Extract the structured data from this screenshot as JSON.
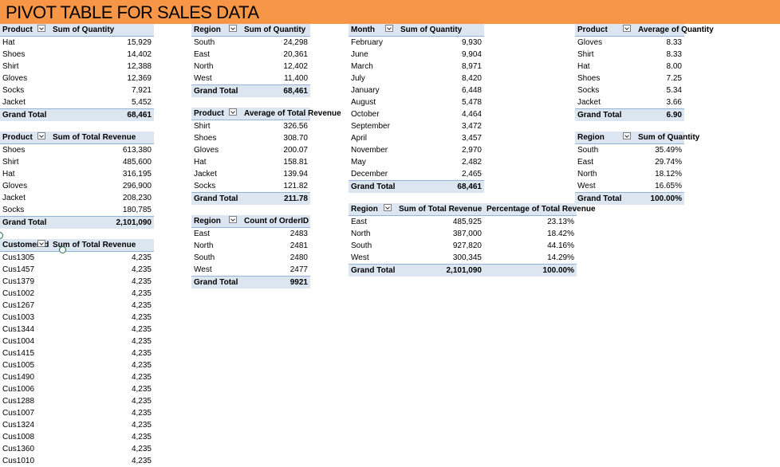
{
  "title": "PIVOT TABLE FOR SALES DATA",
  "pt_product_qty": {
    "headers": [
      "Product",
      "Sum of Quantity"
    ],
    "rows": [
      [
        "Hat",
        "15,929"
      ],
      [
        "Shoes",
        "14,402"
      ],
      [
        "Shirt",
        "12,388"
      ],
      [
        "Gloves",
        "12,369"
      ],
      [
        "Socks",
        "7,921"
      ],
      [
        "Jacket",
        "5,452"
      ]
    ],
    "total": [
      "Grand Total",
      "68,461"
    ]
  },
  "pt_product_rev": {
    "headers": [
      "Product",
      "Sum of Total Revenue"
    ],
    "rows": [
      [
        "Shoes",
        "613,380"
      ],
      [
        "Shirt",
        "485,600"
      ],
      [
        "Hat",
        "316,195"
      ],
      [
        "Gloves",
        "296,900"
      ],
      [
        "Jacket",
        "208,230"
      ],
      [
        "Socks",
        "180,785"
      ]
    ],
    "total": [
      "Grand Total",
      "2,101,090"
    ]
  },
  "pt_customer_rev": {
    "headers": [
      "Customer Id",
      "Sum of Total Revenue"
    ],
    "rows": [
      [
        "Cus1305",
        "4,235"
      ],
      [
        "Cus1457",
        "4,235"
      ],
      [
        "Cus1379",
        "4,235"
      ],
      [
        "Cus1002",
        "4,235"
      ],
      [
        "Cus1267",
        "4,235"
      ],
      [
        "Cus1003",
        "4,235"
      ],
      [
        "Cus1344",
        "4,235"
      ],
      [
        "Cus1004",
        "4,235"
      ],
      [
        "Cus1415",
        "4,235"
      ],
      [
        "Cus1005",
        "4,235"
      ],
      [
        "Cus1490",
        "4,235"
      ],
      [
        "Cus1006",
        "4,235"
      ],
      [
        "Cus1288",
        "4,235"
      ],
      [
        "Cus1007",
        "4,235"
      ],
      [
        "Cus1324",
        "4,235"
      ],
      [
        "Cus1008",
        "4,235"
      ],
      [
        "Cus1360",
        "4,235"
      ],
      [
        "Cus1010",
        "4,235"
      ]
    ]
  },
  "pt_region_qty": {
    "headers": [
      "Region",
      "Sum of Quantity"
    ],
    "rows": [
      [
        "South",
        "24,298"
      ],
      [
        "East",
        "20,361"
      ],
      [
        "North",
        "12,402"
      ],
      [
        "West",
        "11,400"
      ]
    ],
    "total": [
      "Grand Total",
      "68,461"
    ]
  },
  "pt_product_avg_rev": {
    "headers": [
      "Product",
      "Average of Total Revenue"
    ],
    "rows": [
      [
        "Shirt",
        "326.56"
      ],
      [
        "Shoes",
        "308.70"
      ],
      [
        "Gloves",
        "200.07"
      ],
      [
        "Hat",
        "158.81"
      ],
      [
        "Jacket",
        "139.94"
      ],
      [
        "Socks",
        "121.82"
      ]
    ],
    "total": [
      "Grand Total",
      "211.78"
    ]
  },
  "pt_region_count": {
    "headers": [
      "Region",
      "Count of OrderID"
    ],
    "rows": [
      [
        "East",
        "2483"
      ],
      [
        "North",
        "2481"
      ],
      [
        "South",
        "2480"
      ],
      [
        "West",
        "2477"
      ]
    ],
    "total": [
      "Grand Total",
      "9921"
    ]
  },
  "pt_month_qty": {
    "headers": [
      "Month",
      "Sum of Quantity"
    ],
    "rows": [
      [
        "February",
        "9,930"
      ],
      [
        "June",
        "9,904"
      ],
      [
        "March",
        "8,971"
      ],
      [
        "July",
        "8,420"
      ],
      [
        "January",
        "6,448"
      ],
      [
        "August",
        "5,478"
      ],
      [
        "October",
        "4,464"
      ],
      [
        "September",
        "3,472"
      ],
      [
        "April",
        "3,457"
      ],
      [
        "November",
        "2,970"
      ],
      [
        "May",
        "2,482"
      ],
      [
        "December",
        "2,465"
      ]
    ],
    "total": [
      "Grand Total",
      "68,461"
    ]
  },
  "pt_region_rev_pct": {
    "headers": [
      "Region",
      "Sum of Total Revenue",
      "Percentage of Total Revenue"
    ],
    "rows": [
      [
        "East",
        "485,925",
        "23.13%"
      ],
      [
        "North",
        "387,000",
        "18.42%"
      ],
      [
        "South",
        "927,820",
        "44.16%"
      ],
      [
        "West",
        "300,345",
        "14.29%"
      ]
    ],
    "total": [
      "Grand Total",
      "2,101,090",
      "100.00%"
    ]
  },
  "pt_product_avg_qty": {
    "headers": [
      "Product",
      "Average of Quantity"
    ],
    "rows": [
      [
        "Gloves",
        "8.33"
      ],
      [
        "Shirt",
        "8.33"
      ],
      [
        "Hat",
        "8.00"
      ],
      [
        "Shoes",
        "7.25"
      ],
      [
        "Socks",
        "5.34"
      ],
      [
        "Jacket",
        "3.66"
      ]
    ],
    "total": [
      "Grand Total",
      "6.90"
    ]
  },
  "pt_region_qty_pct": {
    "headers": [
      "Region",
      "Sum of Quantity"
    ],
    "rows": [
      [
        "South",
        "35.49%"
      ],
      [
        "East",
        "29.74%"
      ],
      [
        "North",
        "18.12%"
      ],
      [
        "West",
        "16.65%"
      ]
    ],
    "total": [
      "Grand Total",
      "100.00%"
    ]
  },
  "colors": {
    "banner": "#f79646",
    "header_fill": "#dce6f1",
    "header_border": "#95b3d7",
    "selection": "#217346"
  }
}
